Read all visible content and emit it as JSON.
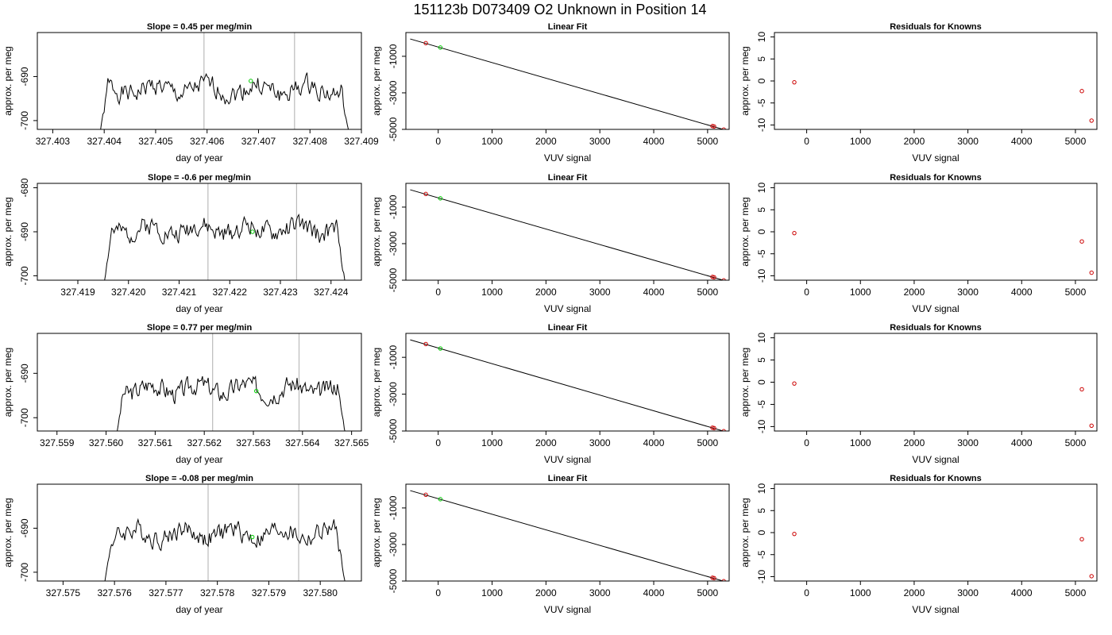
{
  "page_title": "151123b     D073409   O2 Unknown in Position  14",
  "chart_data": [
    {
      "type": "line",
      "row": 0,
      "panel": "timeseries",
      "title": "Slope =  0.45  per meg/min",
      "xlabel": "day of year",
      "ylabel": "approx. per meg",
      "xlim": [
        327.4027,
        327.409
      ],
      "ylim": [
        -702,
        -680
      ],
      "xticks": [
        327.403,
        327.404,
        327.405,
        327.406,
        327.407,
        327.408,
        327.409
      ],
      "yticks": [
        -700,
        -690
      ],
      "xtick_labels": [
        "327.403",
        "327.404",
        "327.405",
        "327.406",
        "327.407",
        "327.408",
        "327.409"
      ],
      "ytick_labels": [
        "-700",
        "-690"
      ],
      "x_range": [
        327.4039,
        327.4088
      ],
      "baseline": -693,
      "amp": 2.2,
      "start_y": -704,
      "end_y": -706,
      "seed": 1,
      "vlines": [
        327.40594,
        327.4077
      ],
      "marker": {
        "x": 327.40685,
        "y": -691
      }
    },
    {
      "type": "scatter",
      "row": 0,
      "panel": "fit",
      "title": "Linear Fit",
      "xlabel": "VUV signal",
      "ylabel": "approx. per meg",
      "xlim": [
        -600,
        5400
      ],
      "ylim": [
        -5000,
        300
      ],
      "xticks": [
        0,
        1000,
        2000,
        3000,
        4000,
        5000
      ],
      "yticks": [
        -5000,
        -3000,
        -1000
      ],
      "xtick_labels": [
        "0",
        "1000",
        "2000",
        "3000",
        "4000",
        "5000"
      ],
      "ytick_labels": [
        "-5000",
        "-3000",
        "-1000"
      ],
      "line": {
        "x0": -520,
        "y0": -50,
        "x1": 5300,
        "y1": -5010
      },
      "known_points": [
        {
          "x": -230,
          "y": -280
        },
        {
          "x": 5090,
          "y": -4820
        },
        {
          "x": 5120,
          "y": -4840
        },
        {
          "x": 5300,
          "y": -5010
        }
      ],
      "unknown_point": {
        "x": 40,
        "y": -520
      }
    },
    {
      "type": "scatter",
      "row": 0,
      "panel": "residuals",
      "title": "Residuals for Knowns",
      "xlabel": "VUV signal",
      "ylabel": "approx. per meg",
      "xlim": [
        -600,
        5400
      ],
      "ylim": [
        -11,
        11
      ],
      "xticks": [
        0,
        1000,
        2000,
        3000,
        4000,
        5000
      ],
      "yticks": [
        -10,
        -5,
        0,
        5,
        10
      ],
      "xtick_labels": [
        "0",
        "1000",
        "2000",
        "3000",
        "4000",
        "5000"
      ],
      "ytick_labels": [
        "-10",
        "-5",
        "0",
        "5",
        "10"
      ],
      "points": [
        {
          "x": -230,
          "y": -0.3
        },
        {
          "x": 5120,
          "y": -2.3
        },
        {
          "x": 5300,
          "y": -9.0
        }
      ]
    },
    {
      "type": "line",
      "row": 1,
      "panel": "timeseries",
      "title": "Slope =  -0.6  per meg/min",
      "xlabel": "day of year",
      "ylabel": "approx. per meg",
      "xlim": [
        327.4182,
        327.4246
      ],
      "ylim": [
        -701,
        -679
      ],
      "xticks": [
        327.419,
        327.42,
        327.421,
        327.422,
        327.423,
        327.424
      ],
      "yticks": [
        -700,
        -690,
        -680
      ],
      "xtick_labels": [
        "327.419",
        "327.420",
        "327.421",
        "327.422",
        "327.423",
        "327.424"
      ],
      "ytick_labels": [
        "-700",
        "-690",
        "-680"
      ],
      "x_range": [
        327.4195,
        327.4243
      ],
      "baseline": -689.5,
      "amp": 2.2,
      "start_y": -703,
      "end_y": -703,
      "seed": 2,
      "vlines": [
        327.42157,
        327.42332
      ],
      "marker": {
        "x": 327.42245,
        "y": -690
      }
    },
    {
      "type": "scatter",
      "row": 1,
      "panel": "fit",
      "title": "Linear Fit",
      "xlabel": "VUV signal",
      "ylabel": "approx. per meg",
      "xlim": [
        -600,
        5400
      ],
      "ylim": [
        -5000,
        300
      ],
      "xticks": [
        0,
        1000,
        2000,
        3000,
        4000,
        5000
      ],
      "yticks": [
        -5000,
        -3000,
        -1000
      ],
      "xtick_labels": [
        "0",
        "1000",
        "2000",
        "3000",
        "4000",
        "5000"
      ],
      "ytick_labels": [
        "-5000",
        "-3000",
        "-1000"
      ],
      "line": {
        "x0": -520,
        "y0": -50,
        "x1": 5300,
        "y1": -5010
      },
      "known_points": [
        {
          "x": -230,
          "y": -280
        },
        {
          "x": 5090,
          "y": -4820
        },
        {
          "x": 5120,
          "y": -4840
        },
        {
          "x": 5300,
          "y": -5010
        }
      ],
      "unknown_point": {
        "x": 40,
        "y": -520
      }
    },
    {
      "type": "scatter",
      "row": 1,
      "panel": "residuals",
      "title": "Residuals for Knowns",
      "xlabel": "VUV signal",
      "ylabel": "approx. per meg",
      "xlim": [
        -600,
        5400
      ],
      "ylim": [
        -11,
        11
      ],
      "xticks": [
        0,
        1000,
        2000,
        3000,
        4000,
        5000
      ],
      "yticks": [
        -10,
        -5,
        0,
        5,
        10
      ],
      "xtick_labels": [
        "0",
        "1000",
        "2000",
        "3000",
        "4000",
        "5000"
      ],
      "ytick_labels": [
        "-10",
        "-5",
        "0",
        "5",
        "10"
      ],
      "points": [
        {
          "x": -230,
          "y": -0.3
        },
        {
          "x": 5120,
          "y": -2.2
        },
        {
          "x": 5300,
          "y": -9.3
        }
      ]
    },
    {
      "type": "line",
      "row": 2,
      "panel": "timeseries",
      "title": "Slope =  0.77  per meg/min",
      "xlabel": "day of year",
      "ylabel": "approx. per meg",
      "xlim": [
        327.5586,
        327.5652
      ],
      "ylim": [
        -703,
        -681
      ],
      "xticks": [
        327.559,
        327.56,
        327.561,
        327.562,
        327.563,
        327.564,
        327.565
      ],
      "yticks": [
        -700,
        -690
      ],
      "xtick_labels": [
        "327.559",
        "327.560",
        "327.561",
        "327.562",
        "327.563",
        "327.564",
        "327.565"
      ],
      "ytick_labels": [
        "-700",
        "-690"
      ],
      "x_range": [
        327.5602,
        327.5649
      ],
      "baseline": -693.5,
      "amp": 2.2,
      "start_y": -705,
      "end_y": -705,
      "seed": 3,
      "vlines": [
        327.56217,
        327.56393
      ],
      "marker": {
        "x": 327.56306,
        "y": -694
      }
    },
    {
      "type": "scatter",
      "row": 2,
      "panel": "fit",
      "title": "Linear Fit",
      "xlabel": "VUV signal",
      "ylabel": "approx. per meg",
      "xlim": [
        -600,
        5400
      ],
      "ylim": [
        -5000,
        300
      ],
      "xticks": [
        0,
        1000,
        2000,
        3000,
        4000,
        5000
      ],
      "yticks": [
        -5000,
        -3000,
        -1000
      ],
      "xtick_labels": [
        "0",
        "1000",
        "2000",
        "3000",
        "4000",
        "5000"
      ],
      "ytick_labels": [
        "-5000",
        "-3000",
        "-1000"
      ],
      "line": {
        "x0": -520,
        "y0": -50,
        "x1": 5300,
        "y1": -5010
      },
      "known_points": [
        {
          "x": -230,
          "y": -280
        },
        {
          "x": 5090,
          "y": -4820
        },
        {
          "x": 5120,
          "y": -4840
        },
        {
          "x": 5300,
          "y": -5010
        }
      ],
      "unknown_point": {
        "x": 40,
        "y": -520
      }
    },
    {
      "type": "scatter",
      "row": 2,
      "panel": "residuals",
      "title": "Residuals for Knowns",
      "xlabel": "VUV signal",
      "ylabel": "approx. per meg",
      "xlim": [
        -600,
        5400
      ],
      "ylim": [
        -11,
        11
      ],
      "xticks": [
        0,
        1000,
        2000,
        3000,
        4000,
        5000
      ],
      "yticks": [
        -10,
        -5,
        0,
        5,
        10
      ],
      "xtick_labels": [
        "0",
        "1000",
        "2000",
        "3000",
        "4000",
        "5000"
      ],
      "ytick_labels": [
        "-10",
        "-5",
        "0",
        "5",
        "10"
      ],
      "points": [
        {
          "x": -230,
          "y": -0.3
        },
        {
          "x": 5120,
          "y": -1.6
        },
        {
          "x": 5300,
          "y": -9.8
        }
      ]
    },
    {
      "type": "line",
      "row": 3,
      "panel": "timeseries",
      "title": "Slope =  -0.08  per meg/min",
      "xlabel": "day of year",
      "ylabel": "approx. per meg",
      "xlim": [
        327.5745,
        327.5808
      ],
      "ylim": [
        -702,
        -680
      ],
      "xticks": [
        327.575,
        327.576,
        327.577,
        327.578,
        327.579,
        327.58
      ],
      "yticks": [
        -700,
        -690
      ],
      "xtick_labels": [
        "327.575",
        "327.576",
        "327.577",
        "327.578",
        "327.579",
        "327.580"
      ],
      "ytick_labels": [
        "-700",
        "-690"
      ],
      "x_range": [
        327.5758,
        327.5805
      ],
      "baseline": -691.3,
      "amp": 2.2,
      "start_y": -703,
      "end_y": -703,
      "seed": 4,
      "vlines": [
        327.57782,
        327.57958
      ],
      "marker": {
        "x": 327.57868,
        "y": -692
      }
    },
    {
      "type": "scatter",
      "row": 3,
      "panel": "fit",
      "title": "Linear Fit",
      "xlabel": "VUV signal",
      "ylabel": "approx. per meg",
      "xlim": [
        -600,
        5400
      ],
      "ylim": [
        -5000,
        300
      ],
      "xticks": [
        0,
        1000,
        2000,
        3000,
        4000,
        5000
      ],
      "yticks": [
        -5000,
        -3000,
        -1000
      ],
      "xtick_labels": [
        "0",
        "1000",
        "2000",
        "3000",
        "4000",
        "5000"
      ],
      "ytick_labels": [
        "-5000",
        "-3000",
        "-1000"
      ],
      "line": {
        "x0": -520,
        "y0": -50,
        "x1": 5300,
        "y1": -5010
      },
      "known_points": [
        {
          "x": -230,
          "y": -280
        },
        {
          "x": 5090,
          "y": -4820
        },
        {
          "x": 5120,
          "y": -4840
        },
        {
          "x": 5300,
          "y": -5010
        }
      ],
      "unknown_point": {
        "x": 40,
        "y": -520
      }
    },
    {
      "type": "scatter",
      "row": 3,
      "panel": "residuals",
      "title": "Residuals for Knowns",
      "xlabel": "VUV signal",
      "ylabel": "approx. per meg",
      "xlim": [
        -600,
        5400
      ],
      "ylim": [
        -11,
        11
      ],
      "xticks": [
        0,
        1000,
        2000,
        3000,
        4000,
        5000
      ],
      "yticks": [
        -10,
        -5,
        0,
        5,
        10
      ],
      "xtick_labels": [
        "0",
        "1000",
        "2000",
        "3000",
        "4000",
        "5000"
      ],
      "ytick_labels": [
        "-10",
        "-5",
        "0",
        "5",
        "10"
      ],
      "points": [
        {
          "x": -230,
          "y": -0.3
        },
        {
          "x": 5120,
          "y": -1.5
        },
        {
          "x": 5300,
          "y": -9.9
        }
      ]
    }
  ],
  "colors": {
    "line": "#000000",
    "known": "#cc0000",
    "unknown": "#00cc00",
    "vline": "#bbbbbb"
  }
}
